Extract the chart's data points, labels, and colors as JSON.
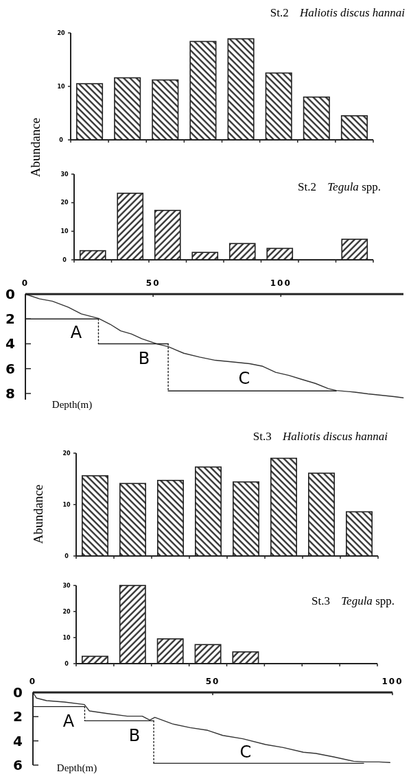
{
  "chart_data": [
    {
      "type": "bar",
      "title": "St.2 Haliotis discus hannai",
      "ylabel": "Abundance",
      "categories": [
        null,
        null,
        null,
        null,
        null,
        null,
        null,
        null
      ],
      "values": [
        10.5,
        11.6,
        11.2,
        18.4,
        18.9,
        12.5,
        8,
        4.5
      ],
      "color": "#222222",
      "ylim": [
        0,
        20
      ],
      "yticks": [
        0,
        10,
        20
      ],
      "tick_labels": "y"
    },
    {
      "type": "bar",
      "title": "St.2 Tegula spp.",
      "categories": [
        null,
        null,
        null,
        null,
        null,
        null,
        null,
        null
      ],
      "values": [
        3.2,
        23.3,
        17.3,
        2.6,
        5.7,
        4,
        null,
        7.2
      ],
      "color": "#222222",
      "ylim": [
        0,
        30
      ],
      "yticks": [
        0,
        10,
        20,
        30
      ],
      "tick_labels": "y"
    },
    {
      "type": "line",
      "xlim": [
        0,
        148
      ],
      "xticks": [
        0,
        50,
        100
      ],
      "ylim": [
        8.5,
        0
      ],
      "yticks": [
        0,
        2,
        4,
        6,
        8
      ],
      "series": [
        {
          "color": "#333333",
          "x": [
            0,
            5.5,
            10.6,
            16.8,
            21.9,
            28.6,
            33.2,
            37.3,
            41.5,
            45.6,
            51.7,
            55.9,
            62,
            68.2,
            74.4,
            80.6,
            87.8,
            92.9,
            98,
            103.2,
            108.3,
            113.5,
            118.6,
            121.7,
            128.9,
            134.1,
            139.2,
            144.3,
            147.9
          ],
          "values": [
            0,
            0.38,
            0.57,
            1.06,
            1.59,
            1.95,
            2.43,
            2.96,
            3.21,
            3.59,
            4.02,
            4.23,
            4.76,
            5.07,
            5.33,
            5.45,
            5.6,
            5.81,
            6.3,
            6.55,
            6.87,
            7.19,
            7.61,
            7.76,
            7.89,
            8.03,
            8.14,
            8.25,
            8.35
          ]
        },
        {
          "color": "#222222",
          "x": [
            0,
            28.6
          ],
          "values": [
            2,
            2
          ]
        },
        {
          "color": "#222222",
          "x": [
            28.6,
            28.6
          ],
          "values": [
            2,
            4
          ],
          "line_style": "dotted"
        },
        {
          "color": "#222222",
          "x": [
            28.6,
            55.9
          ],
          "values": [
            4,
            4
          ]
        },
        {
          "color": "#222222",
          "x": [
            55.9,
            55.9
          ],
          "values": [
            4,
            7.8
          ],
          "line_style": "dotted"
        },
        {
          "color": "#222222",
          "x": [
            55.9,
            121.7
          ],
          "values": [
            7.8,
            7.8
          ]
        }
      ],
      "annotations": [
        "A",
        "B",
        "C",
        "Depth(m)"
      ]
    },
    {
      "type": "bar",
      "title": "St.3 Haliotis discus hannai",
      "ylabel": "Abundance",
      "categories": [
        null,
        null,
        null,
        null,
        null,
        null,
        null,
        null
      ],
      "values": [
        15.6,
        14.1,
        14.7,
        17.3,
        14.4,
        19,
        16.1,
        8.6
      ],
      "color": "#222222",
      "ylim": [
        0,
        20
      ],
      "yticks": [
        0,
        10,
        20
      ],
      "tick_labels": "y"
    },
    {
      "type": "bar",
      "title": "St.3 Tegula spp.",
      "categories": [
        null,
        null,
        null,
        null,
        null,
        null,
        null,
        null
      ],
      "values": [
        2.8,
        30,
        9.5,
        7.3,
        4.5,
        null,
        null,
        null
      ],
      "color": "#222222",
      "ylim": [
        0,
        30
      ],
      "yticks": [
        0,
        10,
        20,
        30
      ],
      "tick_labels": "y"
    },
    {
      "type": "line",
      "xlim": [
        0,
        100
      ],
      "xticks": [
        0,
        50,
        100
      ],
      "ylim": [
        6,
        0
      ],
      "yticks": [
        0,
        2,
        4,
        6
      ],
      "series": [
        {
          "color": "#333333",
          "x": [
            0,
            1,
            3.8,
            8.7,
            14.3,
            15.7,
            20.6,
            26.2,
            30.4,
            32.5,
            33.9,
            38.8,
            43.7,
            48.6,
            52.8,
            58.4,
            64.7,
            69.6,
            75.2,
            78.7,
            83.6,
            89.2,
            92.7,
            96.2,
            99.3
          ],
          "values": [
            0,
            0.47,
            0.68,
            0.79,
            1,
            1.53,
            1.74,
            1.96,
            1.96,
            2.28,
            2.06,
            2.6,
            2.91,
            3.13,
            3.55,
            3.83,
            4.3,
            4.55,
            4.94,
            5.04,
            5.32,
            5.68,
            5.74,
            5.74,
            5.79
          ]
        },
        {
          "color": "#222222",
          "x": [
            0,
            14.4
          ],
          "values": [
            1.17,
            1.17
          ]
        },
        {
          "color": "#222222",
          "x": [
            14.4,
            14.4
          ],
          "values": [
            1.17,
            2.34
          ],
          "line_style": "dotted"
        },
        {
          "color": "#222222",
          "x": [
            14.4,
            33.6
          ],
          "values": [
            2.34,
            2.34
          ]
        },
        {
          "color": "#222222",
          "x": [
            33.6,
            33.6
          ],
          "values": [
            2.34,
            5.85
          ],
          "line_style": "dotted"
        },
        {
          "color": "#222222",
          "x": [
            33.6,
            92
          ],
          "values": [
            5.85,
            5.85
          ]
        }
      ],
      "annotations": [
        "A",
        "B",
        "C",
        "Depth(m)"
      ]
    }
  ]
}
